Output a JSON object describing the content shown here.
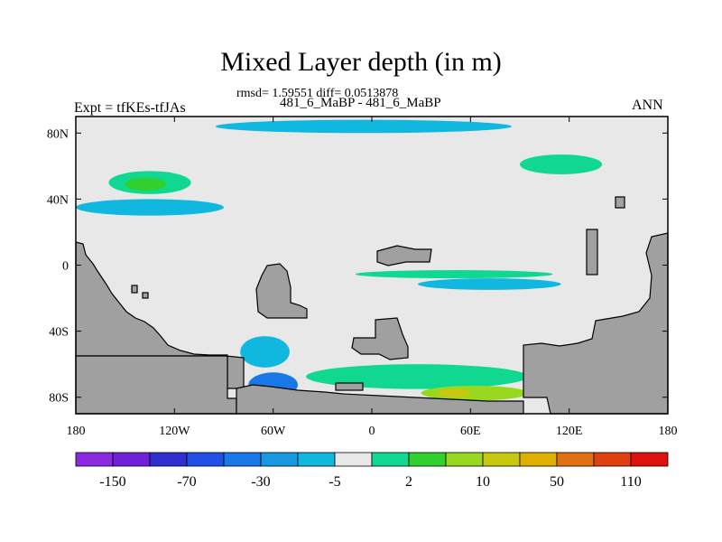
{
  "chart_data": {
    "type": "heatmap",
    "title": "Mixed Layer depth (in m)",
    "stats_line": "rmsd= 1.59551 diff= 0.0513878",
    "experiment_line": "481_6_MaBP - 481_6_MaBP",
    "left_label": "Expt = tfKEs-tfJAs",
    "right_label": "ANN",
    "x_ticks": [
      "180",
      "120W",
      "60W",
      "0",
      "60E",
      "120E",
      "180"
    ],
    "x_tick_values": [
      -180,
      -120,
      -60,
      0,
      60,
      120,
      180
    ],
    "y_ticks": [
      "80N",
      "40N",
      "0",
      "40S",
      "80S"
    ],
    "y_tick_values": [
      80,
      40,
      0,
      -40,
      -80
    ],
    "xlim": [
      -180,
      180
    ],
    "ylim": [
      -90,
      90
    ],
    "land_color": "#a0a0a0",
    "background_color": "#e8e8e8",
    "colorbar": {
      "colors": [
        "#8a2be2",
        "#7020d8",
        "#3030d0",
        "#2050e8",
        "#1878e8",
        "#1898e0",
        "#10b8e0",
        "#e8e8e8",
        "#10d890",
        "#30d030",
        "#98d820",
        "#c8c810",
        "#e0b000",
        "#e07010",
        "#e04010",
        "#e01010"
      ],
      "tick_labels": [
        "-150",
        "-70",
        "-30",
        "-5",
        "2",
        "10",
        "50",
        "110"
      ]
    },
    "anomaly_regions": [
      {
        "color": "#10b8e0",
        "lon": [
          -95,
          85
        ],
        "lat": [
          80,
          88
        ]
      },
      {
        "color": "#10b8e0",
        "lon": [
          -180,
          -90
        ],
        "lat": [
          30,
          40
        ]
      },
      {
        "color": "#10d890",
        "lon": [
          -160,
          -110
        ],
        "lat": [
          43,
          57
        ]
      },
      {
        "color": "#30d030",
        "lon": [
          -150,
          -125
        ],
        "lat": [
          45,
          53
        ]
      },
      {
        "color": "#10d890",
        "lon": [
          90,
          140
        ],
        "lat": [
          55,
          67
        ]
      },
      {
        "color": "#10b8e0",
        "lon": [
          28,
          115
        ],
        "lat": [
          -8,
          -15
        ]
      },
      {
        "color": "#10d890",
        "lon": [
          -10,
          110
        ],
        "lat": [
          -3,
          -8
        ]
      },
      {
        "color": "#10b8e0",
        "lon": [
          -80,
          -50
        ],
        "lat": [
          -43,
          -62
        ]
      },
      {
        "color": "#10d890",
        "lon": [
          -40,
          95
        ],
        "lat": [
          -60,
          -75
        ]
      },
      {
        "color": "#1878e8",
        "lon": [
          -75,
          -45
        ],
        "lat": [
          -65,
          -80
        ]
      },
      {
        "color": "#98d820",
        "lon": [
          30,
          95
        ],
        "lat": [
          -73,
          -82
        ]
      },
      {
        "color": "#c8c810",
        "lon": [
          40,
          60
        ],
        "lat": [
          -75,
          -80
        ]
      }
    ]
  }
}
